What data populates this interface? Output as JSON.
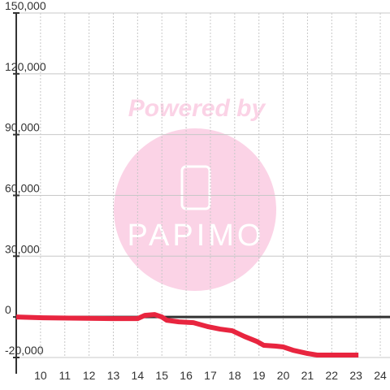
{
  "chart_data": {
    "type": "line",
    "x": [
      9,
      10.1,
      13,
      14,
      14.3,
      14.7,
      15,
      15.2,
      15.7,
      16.3,
      16.9,
      17.4,
      17.9,
      18.4,
      18.9,
      19.2,
      19.7,
      20,
      20.4,
      21,
      21.4,
      23.1
    ],
    "series": [
      {
        "color": "#e8253f",
        "values": [
          0,
          -400,
          -800,
          -800,
          800,
          1200,
          0,
          -1600,
          -2400,
          -2800,
          -4800,
          -6000,
          -6800,
          -9600,
          -12000,
          -14000,
          -14400,
          -14800,
          -16400,
          -18000,
          -18800,
          -18800
        ]
      }
    ],
    "xlim": [
      9,
      24.4
    ],
    "xticks": [
      10,
      11,
      12,
      13,
      14,
      15,
      16,
      17,
      18,
      19,
      20,
      21,
      22,
      23,
      24
    ],
    "ylim": [
      -20000,
      150000
    ],
    "yticks": [
      {
        "value": -20000,
        "label": "-20,000"
      },
      0,
      {
        "value": 30000,
        "label": "30,000"
      },
      {
        "value": 60000,
        "label": "60,000"
      },
      {
        "value": 90000,
        "label": "90,000"
      },
      {
        "value": 120000,
        "label": "120,000"
      },
      {
        "value": 150000,
        "label": "150,000"
      }
    ],
    "grid": true,
    "watermark": {
      "text": "Powered by",
      "logo": "PAPIMO"
    }
  }
}
